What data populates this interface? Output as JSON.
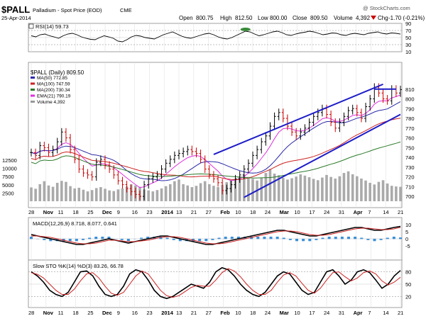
{
  "header": {
    "symbol": "$PALL",
    "name": "Palladium - Spot Price (EOD)",
    "exchange": "CME",
    "date": "25-Apr-2014",
    "watermark": "@ StockCharts.com",
    "open_label": "Open",
    "open": "800.75",
    "high_label": "High",
    "high": "812.50",
    "low_label": "Low",
    "low": "800.00",
    "close_label": "Close",
    "close": "809.50",
    "volume_label": "Volume",
    "volume": "4,392",
    "chg_label": "Chg",
    "chg": "-1.70 (-0.21%)",
    "chg_icon": "down-triangle"
  },
  "rsi": {
    "legend": "RSI(14) 59.73",
    "ticks": [
      "90",
      "70",
      "50",
      "30",
      "10"
    ]
  },
  "price": {
    "title": "$PALL (Daily) 809.50",
    "legend": [
      {
        "label": "MA(50) 772.85",
        "color": "#2a2aa8"
      },
      {
        "label": "MA(100) 747.59",
        "color": "#cc2222"
      },
      {
        "label": "MA(200) 730.34",
        "color": "#2a7a2a"
      },
      {
        "label": "EMA(21) 790.19",
        "color": "#dd33dd"
      },
      {
        "label": "Volume 4,392",
        "color": "#999999"
      }
    ],
    "ticks": [
      "810",
      "800",
      "790",
      "780",
      "770",
      "760",
      "750",
      "740",
      "730",
      "720",
      "710",
      "700"
    ],
    "vol_ticks": [
      "12500",
      "10000",
      "7500",
      "5000",
      "2500"
    ]
  },
  "macd": {
    "legend": "MACD(12,26,9) 8.718, 8.077, 0.641",
    "ticks": [
      "10",
      "5",
      "0",
      "-5"
    ]
  },
  "sto": {
    "legend": "Slow STO %K(14) %D(3) 83.26, 66.78",
    "ticks": [
      "80",
      "50",
      "20"
    ]
  },
  "x_ticks": [
    "28",
    "Nov",
    "11",
    "18",
    "25",
    "Dec",
    "9",
    "16",
    "23",
    "2014",
    "13",
    "21",
    "27",
    "Feb",
    "10",
    "18",
    "24",
    "Mar",
    "10",
    "17",
    "24",
    "31",
    "Apr",
    "7",
    "14",
    "21"
  ],
  "x_ticks_mid": [
    "28",
    "Nov",
    "11",
    "18",
    "25",
    "Dec",
    "9",
    "16",
    "23",
    "2014",
    "13",
    "21",
    "27",
    "Feb",
    "10",
    "18",
    "24",
    "Mar",
    "10",
    "17",
    "24",
    "31",
    "Apr",
    "7",
    "14",
    "21"
  ],
  "colors": {
    "up": "#000000",
    "down": "#cc0000",
    "channel": "#1c1cc8",
    "volume": "#aaaaaa",
    "histogram": "#3b8fd6",
    "rsi_fill": "#3a8a3a"
  },
  "chart_data": {
    "type": "line",
    "title": "$PALL (Daily) 809.50",
    "ylim": [
      695,
      820
    ],
    "x_range": [
      "2013-10-28",
      "2014-04-25"
    ],
    "series": [
      {
        "name": "MA(50)",
        "last": 772.85
      },
      {
        "name": "MA(100)",
        "last": 747.59
      },
      {
        "name": "MA(200)",
        "last": 730.34
      },
      {
        "name": "EMA(21)",
        "last": 790.19
      }
    ],
    "close_path": [
      745,
      742,
      752,
      750,
      745,
      748,
      756,
      766,
      760,
      748,
      738,
      728,
      724,
      722,
      720,
      735,
      738,
      732,
      728,
      722,
      716,
      712,
      708,
      705,
      702,
      700,
      712,
      718,
      720,
      722,
      728,
      734,
      738,
      742,
      744,
      746,
      748,
      746,
      744,
      738,
      728,
      722,
      718,
      714,
      706,
      708,
      712,
      718,
      722,
      728,
      734,
      742,
      748,
      756,
      762,
      772,
      782,
      786,
      780,
      772,
      766,
      762,
      766,
      770,
      776,
      782,
      786,
      790,
      784,
      776,
      770,
      776,
      782,
      788,
      790,
      786,
      780,
      792,
      800,
      812,
      806,
      800,
      798,
      810,
      806,
      809.5
    ],
    "volume_path": [
      4200,
      3800,
      5200,
      6100,
      4800,
      4400,
      5600,
      6200,
      5900,
      4600,
      3900,
      4100,
      3500,
      3000,
      3400,
      4000,
      4300,
      3800,
      3300,
      3100,
      3600,
      3900,
      4500,
      5200,
      4800,
      4400,
      3600,
      3300,
      3000,
      3400,
      3900,
      4600,
      5200,
      6100,
      6600,
      5200,
      4800,
      4300,
      4700,
      5500,
      6100,
      5200,
      4700,
      4300,
      5000,
      5800,
      6300,
      6900,
      7600,
      8100,
      7400,
      6800,
      6300,
      7200,
      8600,
      9800,
      8400,
      7900,
      7100,
      6600,
      7000,
      7500,
      8200,
      7800,
      7300,
      6800,
      6400,
      7200,
      8000,
      7400,
      6900,
      7600,
      8600,
      9100,
      8200,
      7600,
      6900,
      6300,
      5600,
      5100,
      5900,
      6400,
      5400,
      4700,
      4500,
      4392
    ],
    "rsi_path": [
      55,
      52,
      58,
      60,
      55,
      52,
      48,
      55,
      60,
      62,
      58,
      52,
      48,
      45,
      44,
      50,
      55,
      52,
      48,
      40,
      38,
      44,
      52,
      56,
      54,
      50,
      48,
      46,
      52,
      58,
      62,
      66,
      60,
      54,
      50,
      48,
      52,
      56,
      60,
      62,
      58,
      52,
      48,
      46,
      50,
      56,
      62,
      68,
      66,
      60,
      55,
      58,
      62,
      66,
      68,
      64,
      58,
      56,
      60,
      63,
      65,
      68,
      66,
      62,
      58,
      60,
      63,
      62,
      58,
      56,
      60,
      62,
      60,
      58,
      62,
      64,
      66,
      62,
      60,
      63,
      62,
      59.73
    ],
    "macd_path": [
      3,
      2,
      1,
      0,
      -1,
      -2,
      -3,
      -4,
      -4,
      -3,
      -2,
      -1,
      0,
      -1,
      -2,
      -3,
      -2,
      -1,
      0,
      1,
      2,
      2,
      1,
      0,
      -1,
      -2,
      -3,
      -4,
      -4,
      -3,
      -2,
      -1,
      0,
      1,
      2,
      3,
      4,
      5,
      6,
      6,
      5,
      4,
      3,
      2,
      2,
      3,
      4,
      5,
      6,
      7,
      8,
      8,
      7,
      6,
      6,
      7,
      8,
      8.718
    ],
    "signal_path": [
      2,
      2,
      1.5,
      1,
      0,
      -1,
      -2,
      -3,
      -3.5,
      -3.5,
      -3,
      -2,
      -1,
      -1,
      -1.5,
      -2,
      -2,
      -1.5,
      -1,
      0,
      1,
      1.5,
      1.5,
      1,
      0,
      -1,
      -2,
      -3,
      -3.5,
      -3.5,
      -3,
      -2,
      -1,
      0,
      1,
      2,
      3,
      4,
      5,
      5.5,
      5.5,
      5,
      4,
      3,
      2.5,
      2.5,
      3,
      4,
      5,
      6,
      7,
      7.5,
      7.5,
      7,
      6.5,
      6.5,
      7,
      8.077
    ],
    "stok_path": [
      80,
      70,
      55,
      35,
      25,
      20,
      30,
      55,
      80,
      82,
      70,
      45,
      25,
      20,
      25,
      45,
      75,
      85,
      80,
      60,
      35,
      20,
      15,
      20,
      30,
      40,
      50,
      45,
      40,
      55,
      80,
      90,
      85,
      70,
      50,
      35,
      25,
      20,
      30,
      50,
      70,
      80,
      75,
      55,
      35,
      25,
      30,
      55,
      80,
      85,
      70,
      50,
      60,
      80,
      85,
      78,
      60,
      40,
      50,
      70,
      83.26
    ],
    "stod_path": [
      78,
      74,
      65,
      50,
      35,
      25,
      25,
      38,
      58,
      75,
      78,
      65,
      45,
      28,
      23,
      30,
      50,
      70,
      82,
      75,
      55,
      35,
      22,
      18,
      22,
      32,
      42,
      47,
      45,
      45,
      60,
      78,
      88,
      82,
      68,
      50,
      35,
      25,
      25,
      35,
      55,
      72,
      78,
      70,
      52,
      35,
      28,
      40,
      60,
      78,
      80,
      68,
      58,
      65,
      78,
      82,
      75,
      58,
      48,
      55,
      66.78
    ]
  }
}
